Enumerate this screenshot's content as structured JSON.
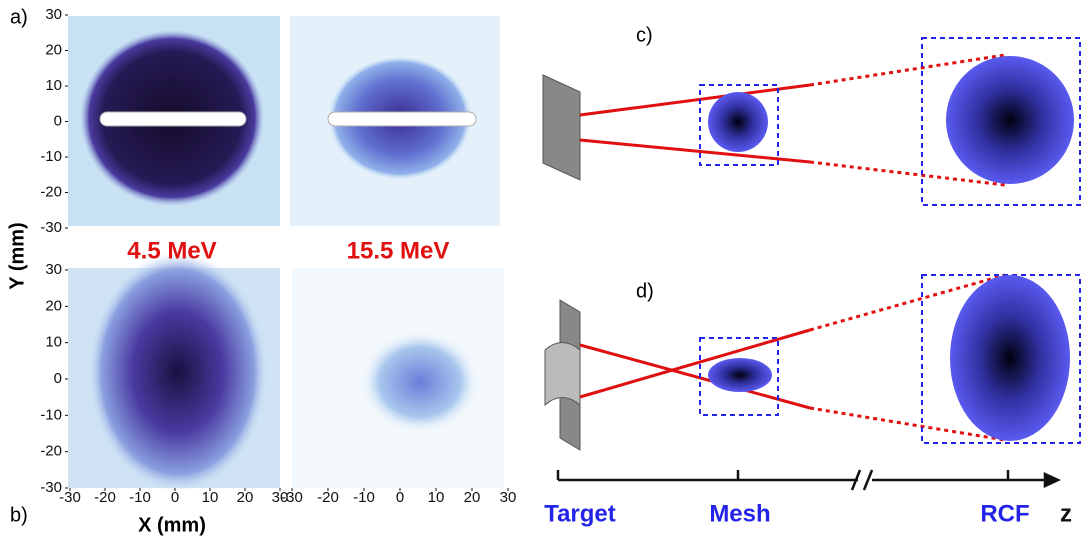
{
  "labels": {
    "a": "a)",
    "b": "b)",
    "c": "c)",
    "d": "d)"
  },
  "energies": [
    "4.5 MeV",
    "15.5 MeV"
  ],
  "axes": {
    "y_title": "Y (mm)",
    "x_title": "X (mm)",
    "yticks": [
      -30,
      -20,
      -10,
      0,
      10,
      20,
      30
    ],
    "xticks": [
      -30,
      -20,
      -10,
      0,
      10,
      20,
      30
    ]
  },
  "schematic": {
    "target": "Target",
    "mesh": "Mesh",
    "rcf": "RCF",
    "axis": "z"
  }
}
